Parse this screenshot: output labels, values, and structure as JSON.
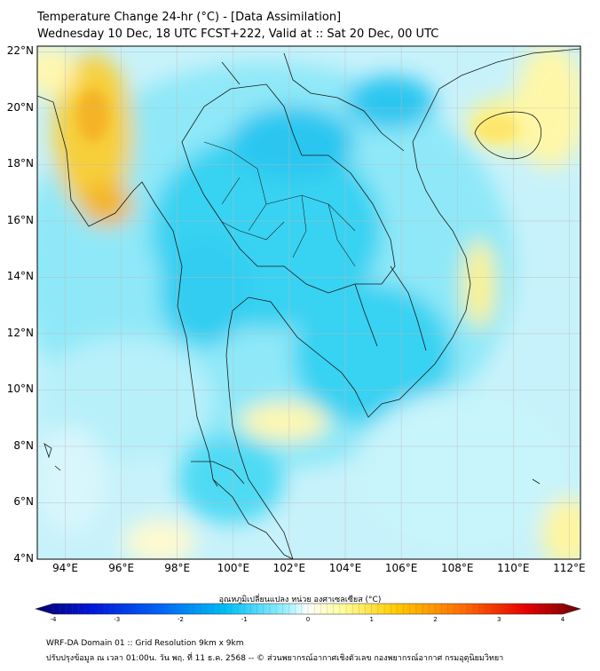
{
  "header": {
    "title": "Temperature Change 24-hr (°C) - [Data Assimilation]",
    "subtitle": "Wednesday 10 Dec, 18 UTC FCST+222, Valid at :: Sat 20 Dec, 00 UTC"
  },
  "map": {
    "lat_labels": [
      "22°N",
      "20°N",
      "18°N",
      "16°N",
      "14°N",
      "12°N",
      "10°N",
      "8°N",
      "6°N",
      "4°N"
    ],
    "lat_values": [
      22,
      20,
      18,
      16,
      14,
      12,
      10,
      8,
      6,
      4
    ],
    "lon_labels": [
      "94°E",
      "96°E",
      "98°E",
      "100°E",
      "102°E",
      "104°E",
      "106°E",
      "108°E",
      "110°E",
      "112°E"
    ],
    "lon_values": [
      94,
      96,
      98,
      100,
      102,
      104,
      106,
      108,
      110,
      112
    ],
    "extent": {
      "lon_min": 93,
      "lon_max": 112.4,
      "lat_min": 4,
      "lat_max": 22.2
    }
  },
  "colorbar": {
    "label": "อุณหภูมิเปลี่ยนแปลง หน่วย องศาเซลเซียส (°C)",
    "ticks": [
      "-4",
      "-3",
      "-2",
      "-1",
      "0",
      "1",
      "2",
      "3",
      "4"
    ],
    "tick_values": [
      -4,
      -3,
      -2,
      -1,
      0,
      1,
      2,
      3,
      4
    ],
    "colors": [
      "#08006b",
      "#0015d6",
      "#005ef5",
      "#00bff5",
      "#9cf0ff",
      "#ffffff",
      "#ffffa0",
      "#ffcc00",
      "#ff7000",
      "#e60000",
      "#6e0000"
    ]
  },
  "footer": {
    "line1": "WRF-DA Domain 01 :: Grid Resolution 9km x 9km",
    "line2": "ปรับปรุงข้อมูล ณ เวลา 01:00น. วัน พฤ. ที่ 11 ธ.ค. 2568 -- © ส่วนพยากรณ์อากาศเชิงตัวเลข กองพยากรณ์อากาศ กรมอุตุนิยมวิทยา"
  }
}
